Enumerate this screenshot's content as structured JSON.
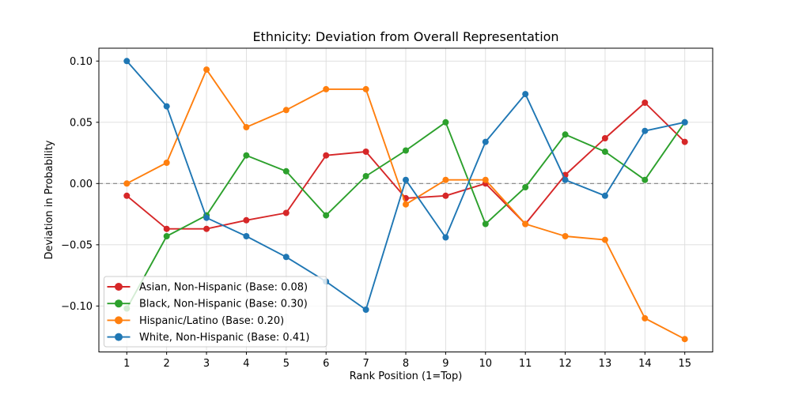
{
  "chart_data": {
    "type": "line",
    "title": "Ethnicity: Deviation from Overall Representation",
    "xlabel": "Rank Position (1=Top)",
    "ylabel": "Deviation in Probability",
    "x": [
      1,
      2,
      3,
      4,
      5,
      6,
      7,
      8,
      9,
      10,
      11,
      12,
      13,
      14,
      15
    ],
    "x_tick_labels": [
      "1",
      "2",
      "3",
      "4",
      "5",
      "6",
      "7",
      "8",
      "9",
      "10",
      "11",
      "12",
      "13",
      "14",
      "15"
    ],
    "y_ticks": [
      {
        "v": 0.1,
        "label": "0.10"
      },
      {
        "v": 0.05,
        "label": "0.05"
      },
      {
        "v": 0.0,
        "label": "0.00"
      },
      {
        "v": -0.05,
        "label": "−0.05"
      },
      {
        "v": -0.1,
        "label": "−0.10"
      }
    ],
    "xlim": [
      0.3,
      15.7
    ],
    "ylim": [
      -0.1375,
      0.1105
    ],
    "grid": true,
    "grid_color": "#dcdcdc",
    "zero_line": {
      "y": 0.0,
      "style": "dashed",
      "color": "#808080"
    },
    "legend": {
      "position": "lower-left"
    },
    "series": [
      {
        "key": "asian",
        "name": "Asian, Non-Hispanic (Base: 0.08)",
        "color": "#d62728",
        "values": [
          -0.01,
          -0.037,
          -0.037,
          -0.03,
          -0.024,
          0.023,
          0.026,
          -0.012,
          -0.01,
          0.0,
          -0.033,
          0.007,
          0.037,
          0.066,
          0.034
        ]
      },
      {
        "key": "black",
        "name": "Black, Non-Hispanic (Base: 0.30)",
        "color": "#2ca02c",
        "values": [
          -0.102,
          -0.043,
          -0.026,
          0.023,
          0.01,
          -0.026,
          0.006,
          0.027,
          0.05,
          -0.033,
          -0.003,
          0.04,
          0.026,
          0.003,
          0.05
        ]
      },
      {
        "key": "hispanic",
        "name": "Hispanic/Latino (Base: 0.20)",
        "color": "#ff7f0e",
        "values": [
          0.0,
          0.017,
          0.093,
          0.046,
          0.06,
          0.077,
          0.077,
          -0.017,
          0.003,
          0.003,
          -0.033,
          -0.043,
          -0.046,
          -0.11,
          -0.127
        ]
      },
      {
        "key": "white",
        "name": "White, Non-Hispanic (Base: 0.41)",
        "color": "#1f77b4",
        "values": [
          0.1,
          0.063,
          -0.028,
          -0.043,
          -0.06,
          -0.08,
          -0.103,
          0.003,
          -0.044,
          0.034,
          0.073,
          0.003,
          -0.01,
          0.043,
          0.05
        ]
      }
    ]
  }
}
